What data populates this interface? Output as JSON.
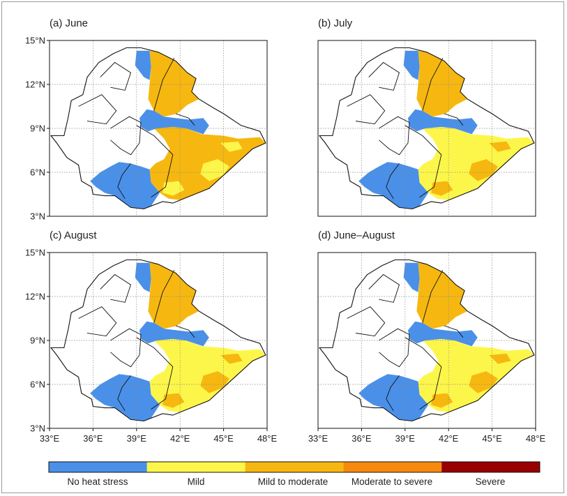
{
  "panels": [
    {
      "title": "(a) June",
      "class_fill": {
        "east": "mild_to_moderate",
        "north": "mild_to_moderate",
        "patches": "mild"
      }
    },
    {
      "title": "(b) July",
      "class_fill": {
        "east": "mild",
        "north": "mild_to_moderate",
        "patches": "mild_to_moderate"
      }
    },
    {
      "title": "(c) August",
      "class_fill": {
        "east": "mild",
        "north": "mild_to_moderate",
        "patches": "mild_to_moderate"
      }
    },
    {
      "title": "(d) June–August",
      "class_fill": {
        "east": "mild",
        "north": "mild_to_moderate",
        "patches": "mild_to_moderate"
      }
    }
  ],
  "axes": {
    "lat_ticks": [
      "3°N",
      "6°N",
      "9°N",
      "12°N",
      "15°N"
    ],
    "lon_ticks": [
      "33°E",
      "36°E",
      "39°E",
      "42°E",
      "45°E",
      "48°E"
    ],
    "lat_range": [
      3,
      15
    ],
    "lon_range": [
      33,
      48
    ],
    "grid": "dotted"
  },
  "legend": {
    "classes": [
      {
        "key": "no_heat_stress",
        "label": "No heat stress",
        "color": "#4a90e8"
      },
      {
        "key": "mild",
        "label": "Mild",
        "color": "#fdf64a"
      },
      {
        "key": "mild_to_moderate",
        "label": "Mild to moderate",
        "color": "#f6b810"
      },
      {
        "key": "moderate_to_severe",
        "label": "Moderate to severe",
        "color": "#f78a0c"
      },
      {
        "key": "severe",
        "label": "Severe",
        "color": "#990000"
      }
    ]
  }
}
